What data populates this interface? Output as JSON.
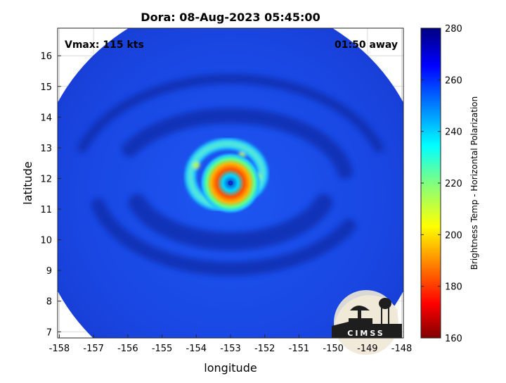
{
  "chart_data": {
    "type": "heatmap",
    "title": "Dora: 08-Aug-2023 05:45:00",
    "xlabel": "longitude",
    "ylabel": "latitude",
    "xlim": [
      -158.05,
      -147.95
    ],
    "ylim": [
      6.8,
      16.9
    ],
    "xticks": [
      -158,
      -157,
      -156,
      -155,
      -154,
      -153,
      -152,
      -151,
      -150,
      -149,
      -148
    ],
    "yticks": [
      7,
      8,
      9,
      10,
      11,
      12,
      13,
      14,
      15,
      16
    ],
    "grid": true,
    "annotations": {
      "top_left": "Vmax: 115 kts",
      "top_right": "01:50 away"
    },
    "storm": {
      "name": "Dora",
      "center_lon": -153.0,
      "center_lat": 11.85,
      "swath_center_lon": -153.0,
      "swath_center_lat": 11.4,
      "swath_radius_deg": 5.75
    },
    "colorbar": {
      "label": "Brightness Temp - Horizontal Polarization",
      "min": 160,
      "max": 280,
      "ticks": [
        160,
        180,
        200,
        220,
        240,
        260,
        280
      ],
      "colormap": "jet"
    },
    "logo_text": "CIMSS"
  },
  "colors": {
    "background_field": "#1a4ae8",
    "deep_blue": "#0f2fb4",
    "eyewall": "#ff6a00",
    "eye": "#1040d0",
    "frame": "#000000"
  }
}
